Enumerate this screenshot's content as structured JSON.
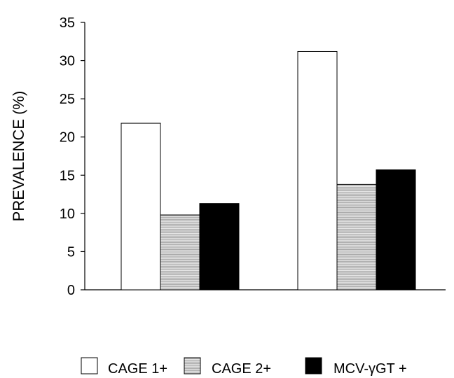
{
  "chart_data": {
    "type": "bar",
    "ylabel": "PREVALENCE (%)",
    "ylim": [
      0,
      35
    ],
    "yticks": [
      "0",
      "5",
      "10",
      "15",
      "20",
      "25",
      "30",
      "35"
    ],
    "categories": [
      "",
      ""
    ],
    "grid": false,
    "legend_position": "bottom",
    "series": [
      {
        "name": "CAGE 1+",
        "values": [
          21.8,
          31.2
        ],
        "fill": "#ffffff",
        "pattern": "none"
      },
      {
        "name": "CAGE 2+",
        "values": [
          9.8,
          13.8
        ],
        "fill": "#d9d9d9",
        "pattern": "horizontal-hatch"
      },
      {
        "name": "MCV-γGT +",
        "values": [
          11.3,
          15.7
        ],
        "fill": "#000000",
        "pattern": "none"
      }
    ]
  }
}
